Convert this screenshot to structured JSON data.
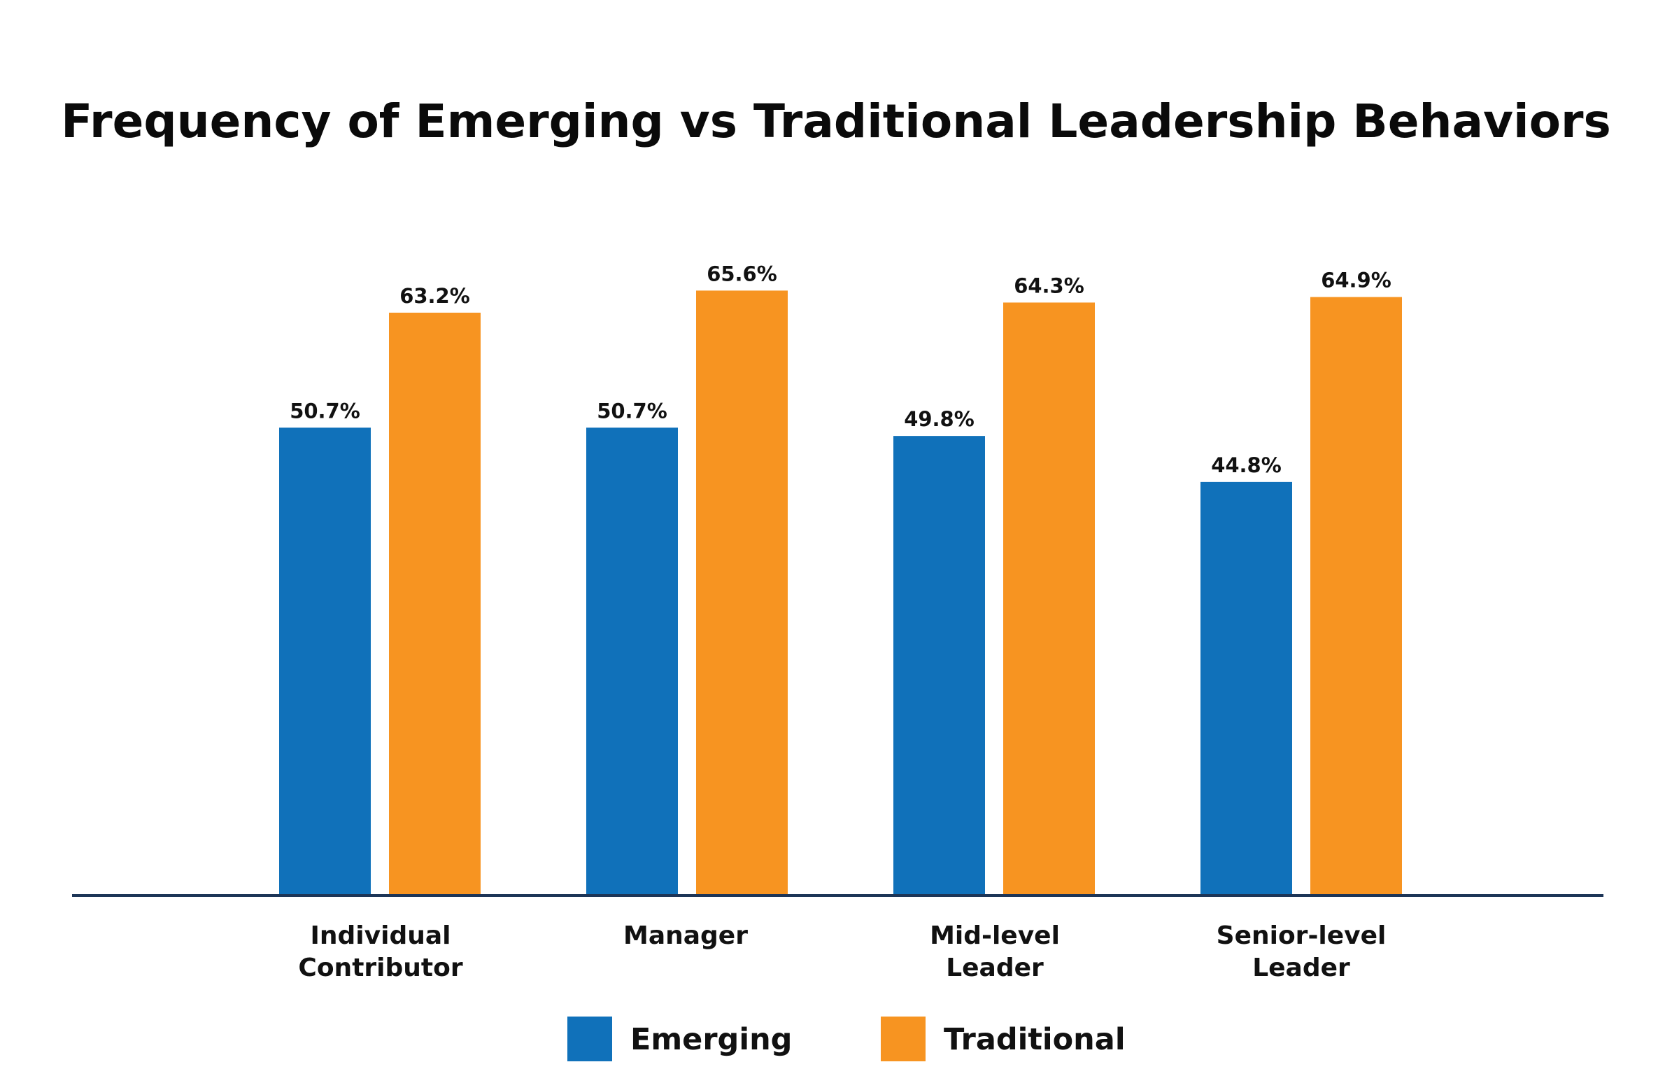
{
  "chart_data": {
    "type": "bar",
    "title": "Frequency of Emerging vs Traditional Leadership Behaviors",
    "categories": [
      [
        "Individual",
        "Contributor"
      ],
      [
        "Manager"
      ],
      [
        "Mid-level",
        "Leader"
      ],
      [
        "Senior-level",
        "Leader"
      ]
    ],
    "series": [
      {
        "name": "Emerging",
        "color": "#1071BA",
        "values": [
          50.7,
          50.7,
          49.8,
          44.8
        ],
        "labels": [
          "50.7%",
          "50.7%",
          "49.8%",
          "44.8%"
        ]
      },
      {
        "name": "Traditional",
        "color": "#F79421",
        "values": [
          63.2,
          65.6,
          64.3,
          64.9
        ],
        "labels": [
          "63.2%",
          "65.6%",
          "64.3%",
          "64.9%"
        ]
      }
    ],
    "ylim": [
      0,
      100
    ],
    "grid": false,
    "axis_color": "#1D3557",
    "legend_position": "bottom"
  }
}
